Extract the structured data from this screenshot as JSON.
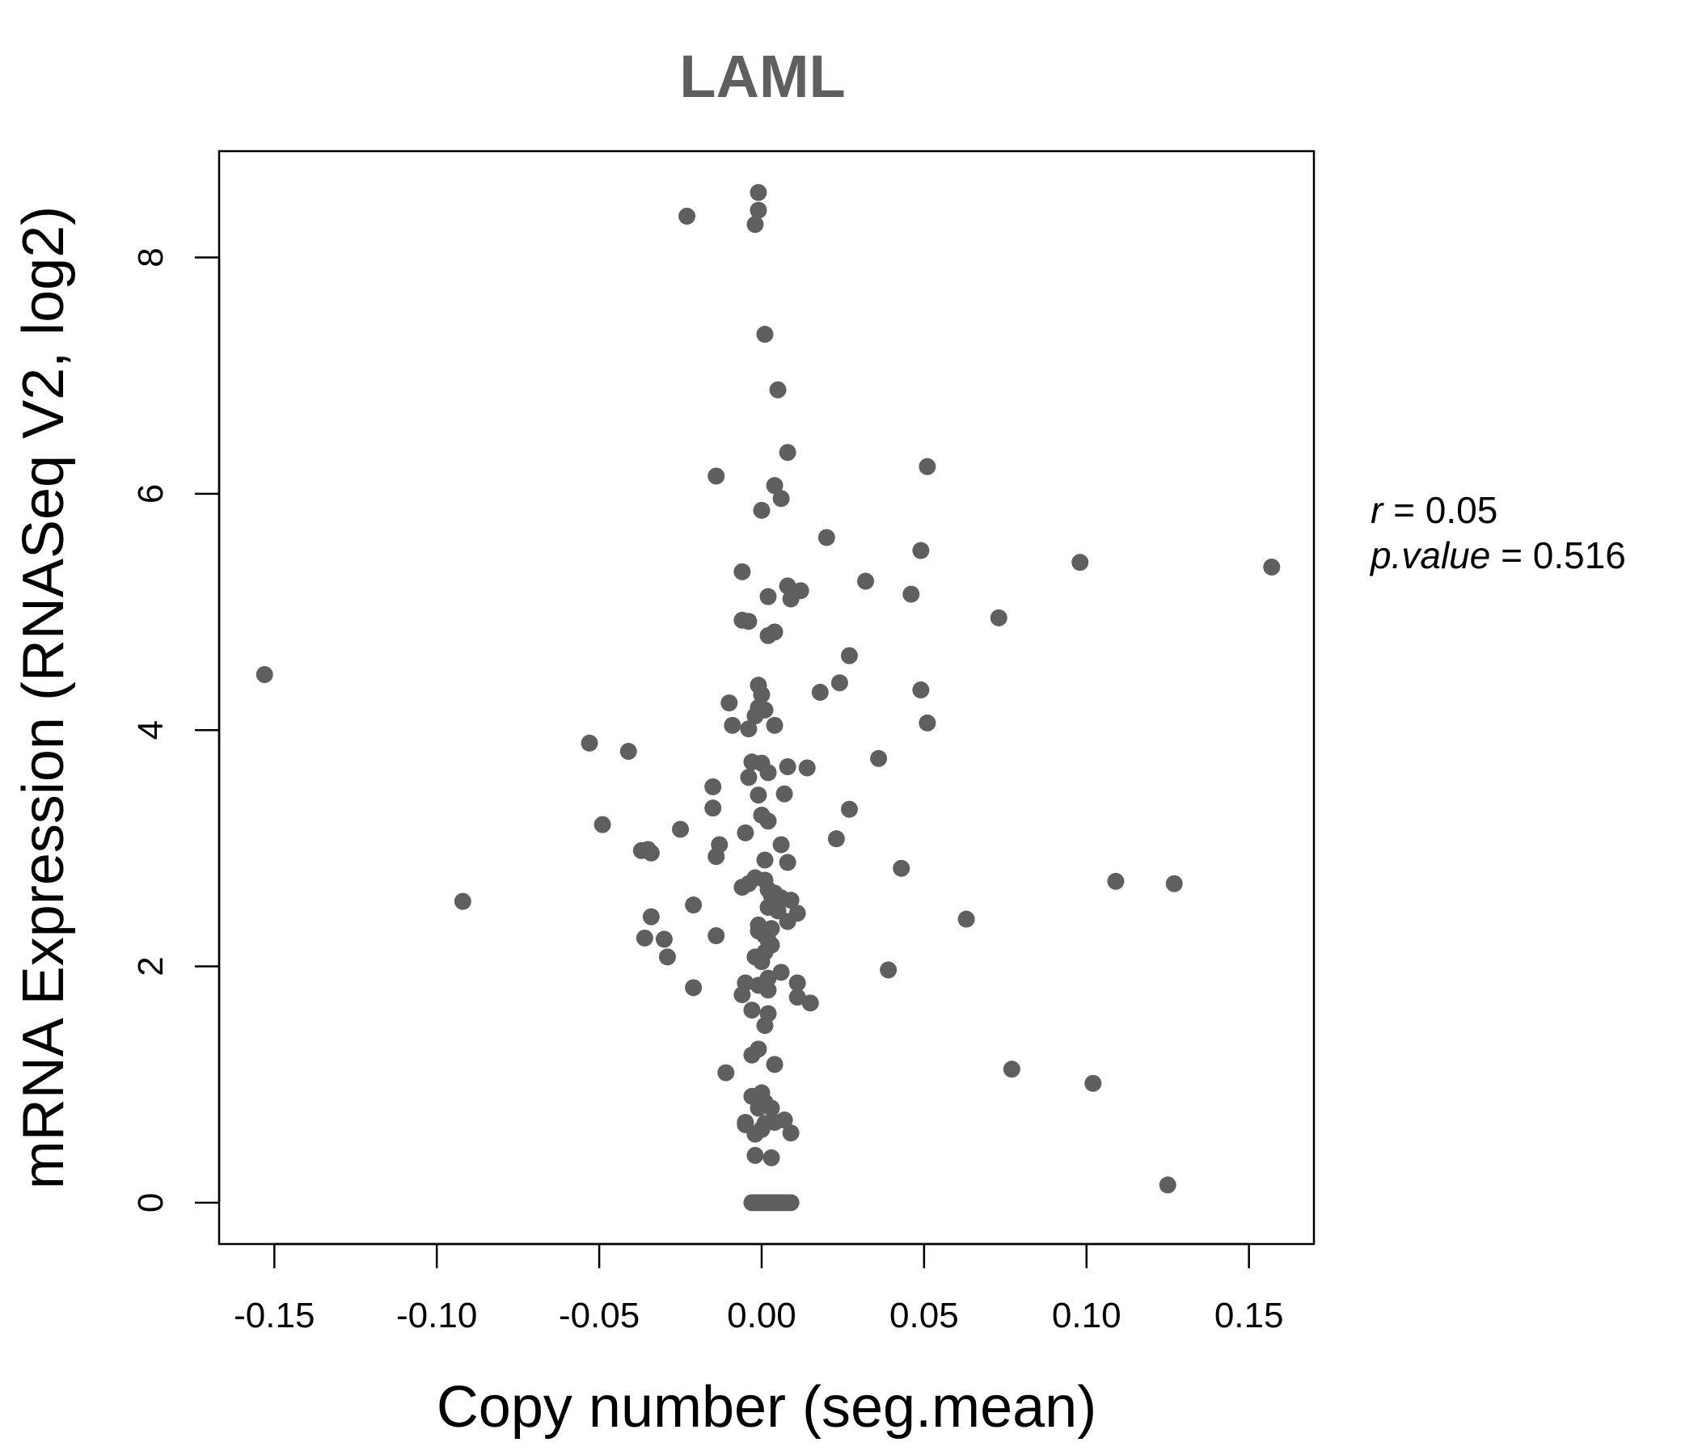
{
  "chart_data": {
    "type": "scatter",
    "title": "LAML",
    "xlabel": "Copy number (seg.mean)",
    "ylabel": "mRNA Expression (RNASeq V2, log2)",
    "xlim": [
      -0.167,
      0.17
    ],
    "ylim": [
      -0.35,
      8.9
    ],
    "x_ticks": [
      -0.15,
      -0.1,
      -0.05,
      0.0,
      0.05,
      0.1,
      0.15
    ],
    "x_tick_labels": [
      "-0.15",
      "-0.10",
      "-0.05",
      "0.00",
      "0.05",
      "0.10",
      "0.15"
    ],
    "y_ticks": [
      0,
      2,
      4,
      6,
      8
    ],
    "y_tick_labels": [
      "0",
      "2",
      "4",
      "6",
      "8"
    ],
    "grid": false,
    "point_color": "#5f5f5f",
    "title_color": "#5f5f5f",
    "stats": {
      "r_label": "r",
      "r_value": "0.05",
      "p_label": "p.value",
      "p_value": "0.516"
    },
    "series": [
      {
        "points": [
          [
            -0.001,
            8.55
          ],
          [
            -0.001,
            8.4
          ],
          [
            -0.023,
            8.35
          ],
          [
            -0.002,
            8.28
          ],
          [
            0.001,
            7.35
          ],
          [
            0.005,
            6.88
          ],
          [
            0.008,
            6.35
          ],
          [
            -0.014,
            6.15
          ],
          [
            0.051,
            6.23
          ],
          [
            0.004,
            6.07
          ],
          [
            0.006,
            5.96
          ],
          [
            0.0,
            5.86
          ],
          [
            0.02,
            5.63
          ],
          [
            0.049,
            5.52
          ],
          [
            0.098,
            5.42
          ],
          [
            0.157,
            5.38
          ],
          [
            -0.006,
            5.34
          ],
          [
            0.032,
            5.26
          ],
          [
            0.008,
            5.22
          ],
          [
            0.012,
            5.18
          ],
          [
            0.046,
            5.15
          ],
          [
            0.002,
            5.13
          ],
          [
            0.009,
            5.11
          ],
          [
            0.073,
            4.95
          ],
          [
            -0.006,
            4.93
          ],
          [
            -0.004,
            4.92
          ],
          [
            0.004,
            4.83
          ],
          [
            0.002,
            4.8
          ],
          [
            0.027,
            4.63
          ],
          [
            -0.153,
            4.47
          ],
          [
            0.024,
            4.4
          ],
          [
            -0.001,
            4.38
          ],
          [
            0.049,
            4.34
          ],
          [
            0.0,
            4.3
          ],
          [
            0.018,
            4.32
          ],
          [
            -0.01,
            4.23
          ],
          [
            -0.001,
            4.19
          ],
          [
            0.001,
            4.17
          ],
          [
            -0.002,
            4.12
          ],
          [
            0.051,
            4.06
          ],
          [
            -0.009,
            4.04
          ],
          [
            0.004,
            4.04
          ],
          [
            -0.004,
            4.01
          ],
          [
            -0.053,
            3.89
          ],
          [
            -0.041,
            3.82
          ],
          [
            0.036,
            3.76
          ],
          [
            -0.003,
            3.73
          ],
          [
            0.0,
            3.72
          ],
          [
            0.008,
            3.69
          ],
          [
            0.014,
            3.68
          ],
          [
            0.002,
            3.64
          ],
          [
            -0.004,
            3.6
          ],
          [
            -0.015,
            3.52
          ],
          [
            -0.001,
            3.45
          ],
          [
            0.007,
            3.46
          ],
          [
            -0.015,
            3.34
          ],
          [
            0.027,
            3.33
          ],
          [
            0.0,
            3.28
          ],
          [
            0.002,
            3.23
          ],
          [
            -0.049,
            3.2
          ],
          [
            -0.025,
            3.16
          ],
          [
            -0.005,
            3.13
          ],
          [
            0.023,
            3.08
          ],
          [
            -0.013,
            3.03
          ],
          [
            0.006,
            3.03
          ],
          [
            -0.037,
            2.98
          ],
          [
            -0.035,
            2.99
          ],
          [
            -0.034,
            2.96
          ],
          [
            -0.014,
            2.93
          ],
          [
            0.001,
            2.9
          ],
          [
            0.008,
            2.88
          ],
          [
            0.043,
            2.83
          ],
          [
            -0.002,
            2.75
          ],
          [
            0.001,
            2.73
          ],
          [
            0.109,
            2.72
          ],
          [
            0.127,
            2.7
          ],
          [
            -0.004,
            2.7
          ],
          [
            -0.006,
            2.67
          ],
          [
            0.002,
            2.65
          ],
          [
            0.004,
            2.62
          ],
          [
            0.003,
            2.6
          ],
          [
            0.006,
            2.58
          ],
          [
            0.009,
            2.56
          ],
          [
            -0.092,
            2.55
          ],
          [
            -0.021,
            2.52
          ],
          [
            0.002,
            2.5
          ],
          [
            0.005,
            2.47
          ],
          [
            0.011,
            2.45
          ],
          [
            -0.034,
            2.42
          ],
          [
            0.063,
            2.4
          ],
          [
            0.008,
            2.38
          ],
          [
            -0.001,
            2.35
          ],
          [
            0.003,
            2.32
          ],
          [
            -0.001,
            2.3
          ],
          [
            -0.014,
            2.26
          ],
          [
            0.001,
            2.26
          ],
          [
            -0.036,
            2.24
          ],
          [
            -0.03,
            2.23
          ],
          [
            0.002,
            2.22
          ],
          [
            0.003,
            2.18
          ],
          [
            0.001,
            2.12
          ],
          [
            -0.002,
            2.08
          ],
          [
            -0.029,
            2.08
          ],
          [
            0.0,
            2.04
          ],
          [
            0.039,
            1.97
          ],
          [
            0.006,
            1.95
          ],
          [
            0.002,
            1.9
          ],
          [
            0.011,
            1.86
          ],
          [
            -0.005,
            1.86
          ],
          [
            -0.001,
            1.84
          ],
          [
            0.002,
            1.8
          ],
          [
            -0.021,
            1.82
          ],
          [
            -0.006,
            1.76
          ],
          [
            0.011,
            1.74
          ],
          [
            0.015,
            1.69
          ],
          [
            -0.003,
            1.63
          ],
          [
            0.002,
            1.6
          ],
          [
            0.001,
            1.5
          ],
          [
            -0.001,
            1.3
          ],
          [
            -0.003,
            1.25
          ],
          [
            0.004,
            1.17
          ],
          [
            0.077,
            1.13
          ],
          [
            -0.011,
            1.1
          ],
          [
            0.102,
            1.01
          ],
          [
            0.0,
            0.93
          ],
          [
            -0.003,
            0.9
          ],
          [
            0.001,
            0.85
          ],
          [
            -0.001,
            0.8
          ],
          [
            0.003,
            0.8
          ],
          [
            0.007,
            0.7
          ],
          [
            -0.005,
            0.68
          ],
          [
            0.004,
            0.68
          ],
          [
            0.001,
            0.67
          ],
          [
            -0.005,
            0.66
          ],
          [
            0.0,
            0.62
          ],
          [
            0.009,
            0.59
          ],
          [
            -0.002,
            0.58
          ],
          [
            -0.002,
            0.4
          ],
          [
            0.003,
            0.38
          ],
          [
            0.125,
            0.15
          ],
          [
            -0.003,
            0.0
          ],
          [
            -0.002,
            0.0
          ],
          [
            -0.001,
            0.0
          ],
          [
            0.0,
            0.0
          ],
          [
            0.001,
            0.0
          ],
          [
            0.002,
            0.0
          ],
          [
            0.003,
            0.0
          ],
          [
            0.004,
            0.0
          ],
          [
            0.005,
            0.0
          ],
          [
            0.006,
            0.0
          ],
          [
            0.007,
            0.0
          ],
          [
            0.008,
            0.0
          ],
          [
            0.009,
            0.0
          ]
        ]
      }
    ]
  }
}
